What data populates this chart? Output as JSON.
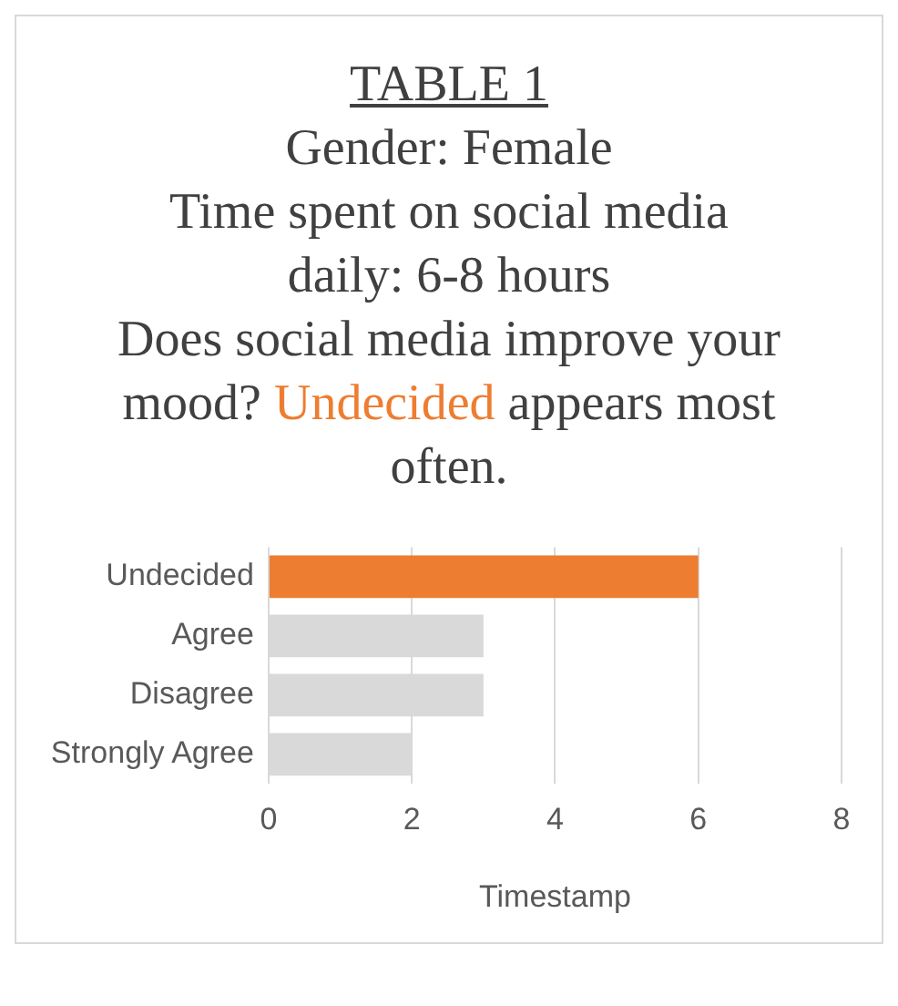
{
  "chart_data": {
    "type": "bar",
    "orientation": "horizontal",
    "title": "TABLE 1",
    "subtitle": "Gender: Female\nTime spent on social media daily: 6-8 hours\nDoes social media improve your mood?",
    "annotations": [
      "Undecided",
      "appears most often."
    ],
    "categories": [
      "Undecided",
      "Agree",
      "Disagree",
      "Strongly Agree"
    ],
    "values": [
      6,
      3,
      3,
      2
    ],
    "colors": [
      "#ed7d31",
      "#d9d9d9",
      "#d9d9d9",
      "#d9d9d9"
    ],
    "xlabel": "Timestamp",
    "xlim": [
      0,
      8
    ],
    "xticks": [
      0,
      2,
      4,
      6,
      8
    ],
    "grid": "x"
  }
}
